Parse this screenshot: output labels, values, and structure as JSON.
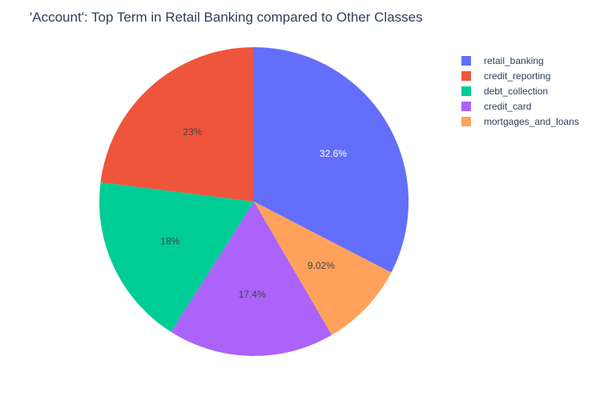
{
  "chart_data": {
    "type": "pie",
    "title": "'Account': Top Term in Retail Banking compared to Other Classes",
    "slices": [
      {
        "label": "retail_banking",
        "percent": 32.6,
        "display": "32.6%",
        "color": "#636efa",
        "text_color": "#ffffff"
      },
      {
        "label": "mortgages_and_loans",
        "percent": 9.02,
        "display": "9.02%",
        "color": "#ffa15a",
        "text_color": "#444444"
      },
      {
        "label": "credit_card",
        "percent": 17.4,
        "display": "17.4%",
        "color": "#ab63fa",
        "text_color": "#444444"
      },
      {
        "label": "debt_collection",
        "percent": 18.0,
        "display": "18%",
        "color": "#00cc96",
        "text_color": "#444444"
      },
      {
        "label": "credit_reporting",
        "percent": 23.0,
        "display": "23%",
        "color": "#ef553b",
        "text_color": "#444444"
      }
    ],
    "legend": {
      "placement": "top-right",
      "order": [
        "retail_banking",
        "credit_reporting",
        "debt_collection",
        "credit_card",
        "mortgages_and_loans"
      ]
    },
    "direction": "clockwise",
    "start": "top"
  }
}
